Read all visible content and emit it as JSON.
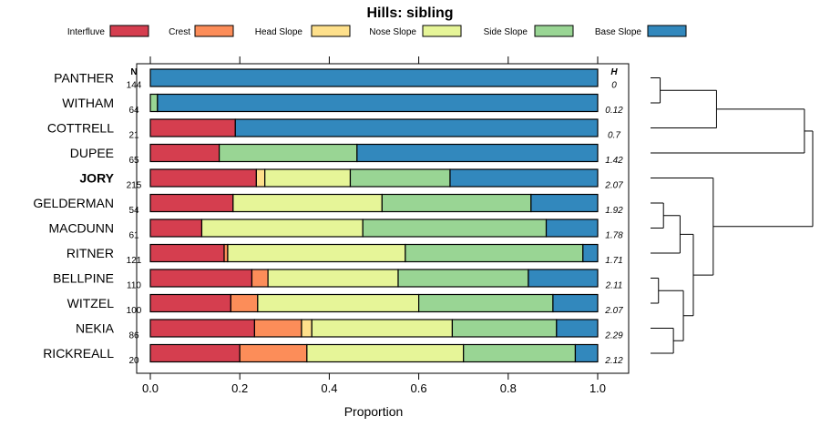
{
  "chart_data": {
    "type": "bar",
    "stacked": true,
    "orientation": "horizontal",
    "title": "Hills: sibling",
    "xlabel": "Proportion",
    "xlim": [
      0,
      1
    ],
    "xticks": [
      "0.0",
      "0.2",
      "0.4",
      "0.6",
      "0.8",
      "1.0"
    ],
    "xtick_values": [
      0,
      0.2,
      0.4,
      0.6,
      0.8,
      1.0
    ],
    "n_header": "N",
    "h_header": "H",
    "legend": [
      {
        "name": "Interfluve",
        "color": "#D53E4F"
      },
      {
        "name": "Crest",
        "color": "#FC8D59"
      },
      {
        "name": "Head Slope",
        "color": "#FEE08B"
      },
      {
        "name": "Nose Slope",
        "color": "#E6F598"
      },
      {
        "name": "Side Slope",
        "color": "#99D594"
      },
      {
        "name": "Base Slope",
        "color": "#3288BD"
      }
    ],
    "series_names": [
      "Interfluve",
      "Crest",
      "Head Slope",
      "Nose Slope",
      "Side Slope",
      "Base Slope"
    ],
    "series_colors": [
      "#D53E4F",
      "#FC8D59",
      "#FEE08B",
      "#E6F598",
      "#99D594",
      "#3288BD"
    ],
    "categories": [
      {
        "name": "PANTHER",
        "n": "144",
        "h": "0",
        "bold": false,
        "values": [
          0,
          0,
          0,
          0,
          0,
          1.0
        ]
      },
      {
        "name": "WITHAM",
        "n": "64",
        "h": "0.12",
        "bold": false,
        "values": [
          0,
          0,
          0,
          0,
          0.016,
          0.984
        ]
      },
      {
        "name": "COTTRELL",
        "n": "21",
        "h": "0.7",
        "bold": false,
        "values": [
          0.19,
          0,
          0,
          0,
          0,
          0.81
        ]
      },
      {
        "name": "DUPEE",
        "n": "65",
        "h": "1.42",
        "bold": false,
        "values": [
          0.154,
          0,
          0,
          0,
          0.308,
          0.538
        ]
      },
      {
        "name": "JORY",
        "n": "215",
        "h": "2.07",
        "bold": true,
        "values": [
          0.237,
          0,
          0.019,
          0.191,
          0.223,
          0.33
        ]
      },
      {
        "name": "GELDERMAN",
        "n": "54",
        "h": "1.92",
        "bold": false,
        "values": [
          0.185,
          0,
          0,
          0.333,
          0.333,
          0.149
        ]
      },
      {
        "name": "MACDUNN",
        "n": "61",
        "h": "1.78",
        "bold": false,
        "values": [
          0.115,
          0,
          0,
          0.36,
          0.41,
          0.115
        ]
      },
      {
        "name": "RITNER",
        "n": "121",
        "h": "1.71",
        "bold": false,
        "values": [
          0.165,
          0.008,
          0,
          0.397,
          0.397,
          0.033
        ]
      },
      {
        "name": "BELLPINE",
        "n": "110",
        "h": "2.11",
        "bold": false,
        "values": [
          0.227,
          0.036,
          0,
          0.291,
          0.291,
          0.155
        ]
      },
      {
        "name": "WITZEL",
        "n": "100",
        "h": "2.07",
        "bold": false,
        "values": [
          0.18,
          0.06,
          0,
          0.36,
          0.3,
          0.1
        ]
      },
      {
        "name": "NEKIA",
        "n": "86",
        "h": "2.29",
        "bold": false,
        "values": [
          0.233,
          0.105,
          0.023,
          0.314,
          0.233,
          0.092
        ]
      },
      {
        "name": "RICKREALL",
        "n": "20",
        "h": "2.12",
        "bold": false,
        "values": [
          0.2,
          0.15,
          0,
          0.35,
          0.25,
          0.05
        ]
      }
    ],
    "dendrogram": {
      "tree": [
        [
          [
            [
              "PANTHER",
              "WITHAM"
            ],
            "COTTRELL"
          ],
          "DUPEE"
        ],
        [
          "JORY",
          [
            [
              [
                "GELDERMAN",
                "MACDUNN"
              ],
              "RITNER"
            ],
            [
              [
                "BELLPINE",
                "WITZEL"
              ],
              [
                "NEKIA",
                "RICKREALL"
              ]
            ]
          ]
        ]
      ],
      "merge_heights": {
        "PANTHER|WITHAM": 0.08,
        "PANTHER|WITHAM|COTTRELL": 0.42,
        "PANTHER|WITHAM|COTTRELL|DUPEE": 0.95,
        "GELDERMAN|MACDUNN": 0.1,
        "GELDERMAN|MACDUNN|RITNER": 0.2,
        "BELLPINE|WITZEL": 0.07,
        "NEKIA|RICKREALL": 0.16,
        "BELLPINE|WITZEL|NEKIA|RICKREALL": 0.22,
        "GELDERMAN|MACDUNN|RITNER|BELLPINE|WITZEL|NEKIA|RICKREALL": 0.28,
        "JORY|GELDERMAN|MACDUNN|RITNER|BELLPINE|WITZEL|NEKIA|RICKREALL": 0.4,
        "root": 1.0
      }
    }
  }
}
